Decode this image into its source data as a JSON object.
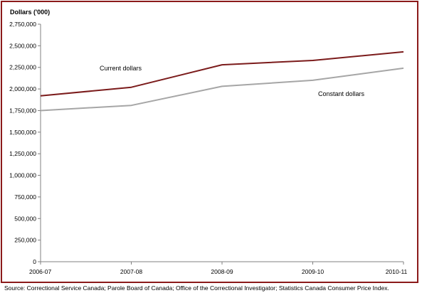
{
  "chart_data": {
    "type": "line",
    "title": "",
    "ylabel": "Dollars ('000)",
    "xlabel": "",
    "categories": [
      "2006-07",
      "2007-08",
      "2008-09",
      "2009-10",
      "2010-11"
    ],
    "ylim": [
      0,
      2750000
    ],
    "yticks": [
      0,
      250000,
      500000,
      750000,
      1000000,
      1250000,
      1500000,
      1750000,
      2000000,
      2250000,
      2500000,
      2750000
    ],
    "ytick_labels": [
      "0",
      "250,000",
      "500,000",
      "750,000",
      "1,000,000",
      "1,250,000",
      "1,500,000",
      "1,750,000",
      "2,000,000",
      "2,250,000",
      "2,500,000",
      "2,750,000"
    ],
    "grid": false,
    "legend": "none (inline labels)",
    "series": [
      {
        "name": "Current dollars",
        "values": [
          1920000,
          2020000,
          2280000,
          2330000,
          2430000
        ],
        "color": "#7b1b1b"
      },
      {
        "name": "Constant dollars",
        "values": [
          1750000,
          1810000,
          2030000,
          2100000,
          2240000
        ],
        "color": "#a6a6a6"
      }
    ]
  },
  "source_text": "Source: Correctional Service Canada; Parole Board of Canada; Office of the Correctional Investigator; Statistics Canada Consumer Price Index."
}
